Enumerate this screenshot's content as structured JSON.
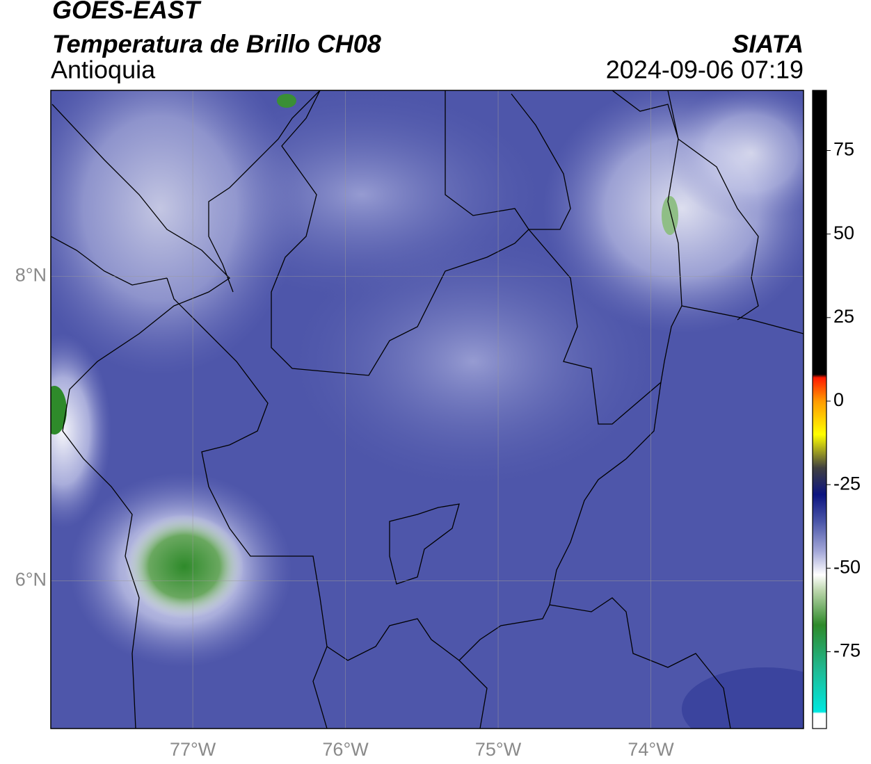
{
  "chart_data": {
    "type": "map",
    "title": "GOES-EAST",
    "subtitle": "Temperatura de Brillo CH08",
    "region": "Antioquia",
    "source": "SIATA",
    "datetime": "2024-09-06 07:19",
    "xlim": [
      -77.93,
      -73.0
    ],
    "ylim": [
      5.03,
      9.22
    ],
    "xticks": [
      {
        "value": -77,
        "label": "77°W"
      },
      {
        "value": -76,
        "label": "76°W"
      },
      {
        "value": -75,
        "label": "75°W"
      },
      {
        "value": -74,
        "label": "74°W"
      }
    ],
    "yticks": [
      {
        "value": 8,
        "label": "8°N"
      },
      {
        "value": 6,
        "label": "6°N"
      }
    ],
    "grid": true,
    "colorbar": {
      "lim": [
        -98,
        93
      ],
      "ticks": [
        75,
        50,
        25,
        0,
        -25,
        -50,
        -75
      ],
      "stops": [
        {
          "value": -98,
          "color": "#ffffff"
        },
        {
          "value": -93.5,
          "color": "#ffffff"
        },
        {
          "value": -93,
          "color": "#00e8e0"
        },
        {
          "value": -80,
          "color": "#20b890"
        },
        {
          "value": -67,
          "color": "#2e8a2a"
        },
        {
          "value": -57,
          "color": "#b8d4a8"
        },
        {
          "value": -52,
          "color": "#ffffff"
        },
        {
          "value": -45,
          "color": "#a4a8d8"
        },
        {
          "value": -36,
          "color": "#4a55a8"
        },
        {
          "value": -28,
          "color": "#0c1480"
        },
        {
          "value": -20,
          "color": "#404040"
        },
        {
          "value": -10,
          "color": "#ffff00"
        },
        {
          "value": 0,
          "color": "#ff9a00"
        },
        {
          "value": 7,
          "color": "#ff1a00"
        },
        {
          "value": 8,
          "color": "#000000"
        },
        {
          "value": 93,
          "color": "#000000"
        }
      ]
    }
  }
}
